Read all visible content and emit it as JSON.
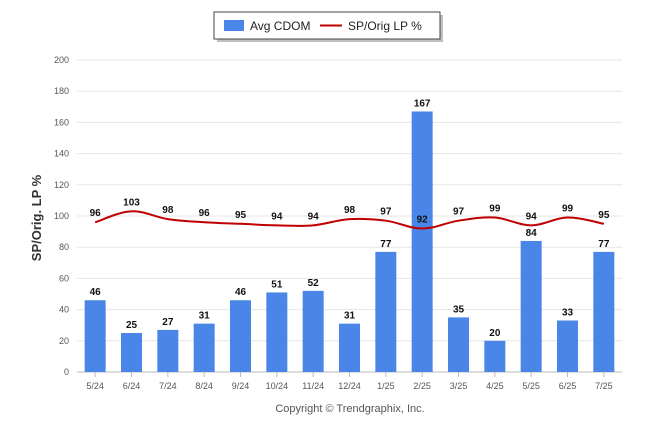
{
  "chart_data": {
    "type": "bar",
    "categories": [
      "5/24",
      "6/24",
      "7/24",
      "8/24",
      "9/24",
      "10/24",
      "11/24",
      "12/24",
      "1/25",
      "2/25",
      "3/25",
      "4/25",
      "5/25",
      "6/25",
      "7/25"
    ],
    "series": [
      {
        "name": "Avg CDOM",
        "type": "bar",
        "values": [
          46,
          25,
          27,
          31,
          46,
          51,
          52,
          31,
          77,
          167,
          35,
          20,
          84,
          33,
          77
        ]
      },
      {
        "name": "SP/Orig LP %",
        "type": "line",
        "values": [
          96,
          103,
          98,
          96,
          95,
          94,
          94,
          98,
          97,
          92,
          97,
          99,
          94,
          99,
          95
        ]
      }
    ],
    "ylabel": "SP/Orig. LP %",
    "ylim": [
      0,
      200
    ],
    "yticks": [
      0,
      20,
      40,
      60,
      80,
      100,
      120,
      140,
      160,
      180,
      200
    ],
    "grid": true,
    "legend_position": "top-center",
    "colors": {
      "bar": "#4a86e8",
      "line": "#c00000"
    }
  },
  "legend": {
    "bar_label": "Avg CDOM",
    "line_label": "SP/Orig LP %"
  },
  "credit": "Copyright © Trendgraphix, Inc."
}
